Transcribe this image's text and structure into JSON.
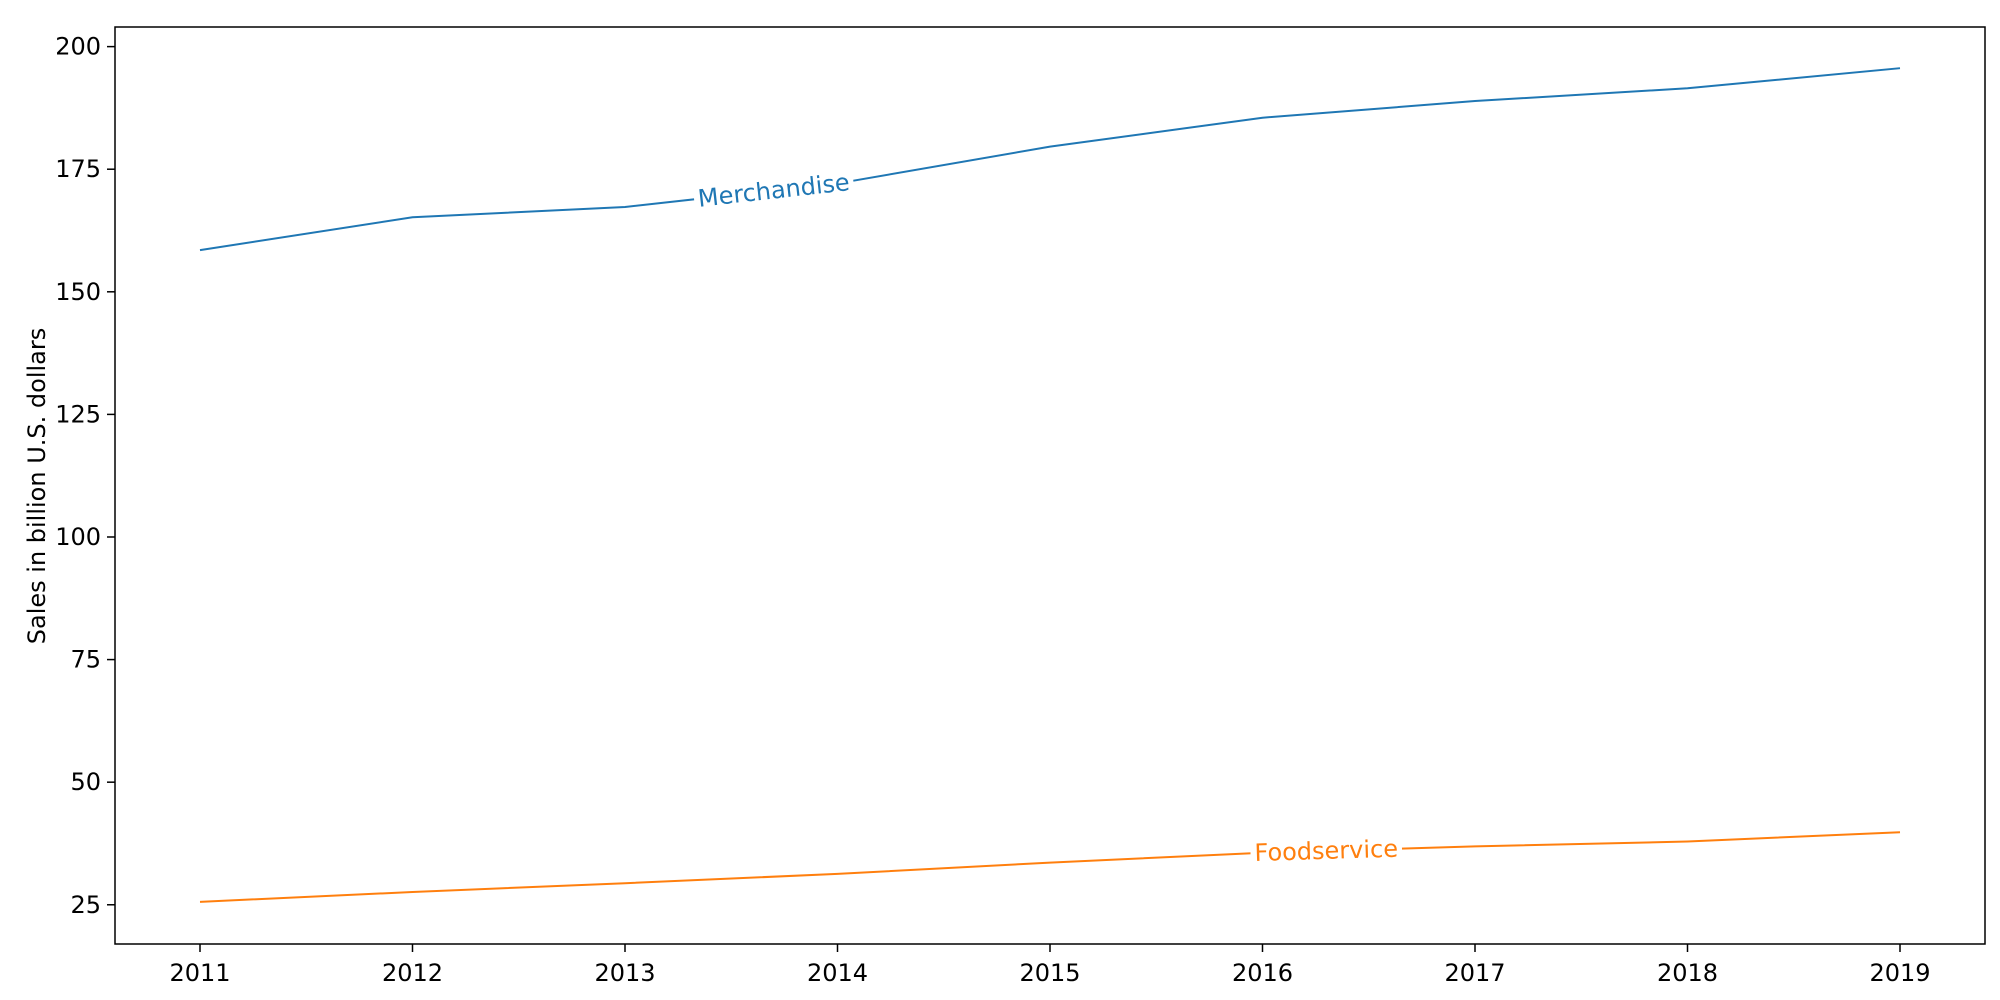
{
  "chart_data": {
    "type": "line",
    "title": "",
    "xlabel": "",
    "ylabel": "Sales in billion U.S. dollars",
    "x": [
      2011,
      2012,
      2013,
      2014,
      2015,
      2016,
      2017,
      2018,
      2019
    ],
    "xlim": [
      2010.6,
      2019.4
    ],
    "ylim": [
      17,
      204
    ],
    "yticks": [
      25,
      50,
      75,
      100,
      125,
      150,
      175,
      200
    ],
    "grid": false,
    "legend": "none",
    "series": [
      {
        "name": "Merchandise",
        "color": "#1f77b4",
        "values": [
          158.5,
          165.2,
          167.3,
          172.1,
          179.6,
          185.5,
          188.9,
          191.5,
          195.6
        ],
        "label_at": 2013.7
      },
      {
        "name": "Foodservice",
        "color": "#ff7f0e",
        "values": [
          25.6,
          27.6,
          29.4,
          31.3,
          33.6,
          35.6,
          36.9,
          37.9,
          39.8
        ],
        "label_at": 2016.3
      }
    ]
  }
}
